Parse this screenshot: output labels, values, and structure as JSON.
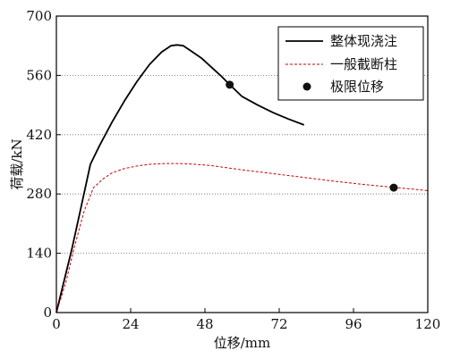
{
  "chart_data": {
    "type": "line",
    "title": "",
    "xlabel": "位移/mm",
    "ylabel": "荷载/kN",
    "xlim": [
      0,
      120
    ],
    "ylim": [
      0,
      700
    ],
    "xticks": [
      0,
      24,
      48,
      72,
      96,
      120
    ],
    "yticks": [
      0,
      140,
      280,
      420,
      560,
      700
    ],
    "grid": "horizontal dotted",
    "legend_position": "top-right",
    "series": [
      {
        "name": "整体现浇注",
        "style": "solid",
        "color": "#000000",
        "x": [
          0,
          2,
          5,
          8,
          11,
          14,
          18,
          22,
          26,
          30,
          34,
          37,
          39,
          41,
          44,
          47,
          50,
          53,
          56,
          60,
          65,
          70,
          75,
          80
        ],
        "y": [
          0,
          60,
          150,
          250,
          350,
          395,
          450,
          500,
          545,
          585,
          615,
          630,
          632,
          630,
          615,
          600,
          580,
          560,
          538,
          510,
          490,
          472,
          457,
          443
        ]
      },
      {
        "name": "一般截断柱",
        "style": "dashed",
        "color": "#cc0000",
        "x": [
          0,
          3,
          6,
          9,
          12,
          15,
          18,
          22,
          26,
          30,
          35,
          40,
          45,
          50,
          60,
          70,
          80,
          90,
          100,
          110,
          120
        ],
        "y": [
          0,
          70,
          160,
          240,
          295,
          315,
          330,
          340,
          346,
          350,
          352,
          352,
          350,
          347,
          337,
          328,
          319,
          310,
          302,
          295,
          288
        ]
      }
    ],
    "markers": {
      "name": "极限位移",
      "color": "#111111",
      "points": [
        {
          "x": 56,
          "y": 538
        },
        {
          "x": 109,
          "y": 295
        }
      ]
    }
  }
}
